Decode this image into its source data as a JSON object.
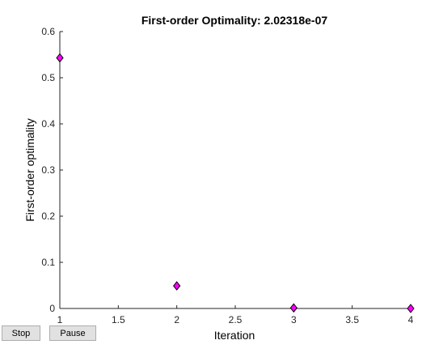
{
  "chart_data": {
    "type": "scatter",
    "title": "First-order Optimality: 2.02318e-07",
    "xlabel": "Iteration",
    "ylabel": "First-order optimality",
    "xlim": [
      1,
      4
    ],
    "ylim": [
      0,
      0.6
    ],
    "xticks": [
      "1",
      "1.5",
      "2",
      "2.5",
      "3",
      "3.5",
      "4"
    ],
    "yticks": [
      "0",
      "0.1",
      "0.2",
      "0.3",
      "0.4",
      "0.5",
      "0.6"
    ],
    "x": [
      1,
      2,
      3,
      4
    ],
    "y": [
      0.543,
      0.049,
      0.0012,
      2e-07
    ],
    "marker": "diamond",
    "marker_color": "#ff00ff",
    "grid": false
  },
  "controls": {
    "stop_label": "Stop",
    "pause_label": "Pause"
  }
}
